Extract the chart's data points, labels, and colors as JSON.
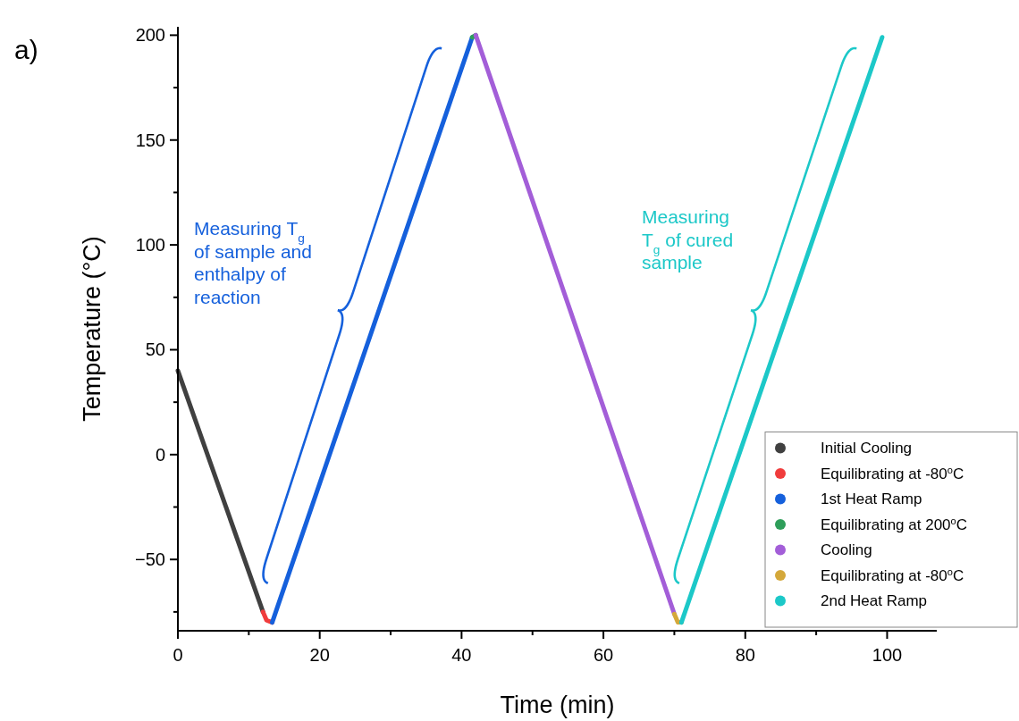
{
  "chart_data": {
    "type": "line",
    "xlabel": "Time (min)",
    "ylabel": "Temperature (°C)",
    "xlim": [
      0,
      107
    ],
    "ylim": [
      -84,
      204
    ],
    "xticks": [
      0,
      {
        "value": 10,
        "label": null
      },
      20,
      {
        "value": 30,
        "label": null
      },
      40,
      {
        "value": 50,
        "label": null
      },
      60,
      {
        "value": 70,
        "label": null
      },
      80,
      {
        "value": 90,
        "label": null
      },
      100
    ],
    "yticks": [
      {
        "value": -75,
        "label": null
      },
      -50,
      {
        "value": -25,
        "label": null
      },
      0,
      {
        "value": 25,
        "label": null
      },
      50,
      {
        "value": 75,
        "label": null
      },
      100,
      {
        "value": 125,
        "label": null
      },
      150,
      {
        "value": 175,
        "label": null
      },
      200
    ],
    "grid": false,
    "legend": "bottom right",
    "marker": "none",
    "line_style": "solid",
    "series": [
      {
        "name": "Initial Cooling",
        "color": "#404040",
        "x": [
          0,
          12
        ],
        "values": [
          40,
          -75
        ]
      },
      {
        "name": "Equilibrating at -80$^{o}$C",
        "color": "#f03c3c",
        "x": [
          12,
          12.5,
          13.3
        ],
        "values": [
          -75,
          -79,
          -80
        ]
      },
      {
        "name": "1st Heat Ramp",
        "color": "#1560dc",
        "x": [
          13.3,
          41.5
        ],
        "values": [
          -80,
          199
        ]
      },
      {
        "name": "Equilibrating at 200$^{o}$C",
        "color": "#2e9e5a",
        "x": [
          41.5,
          42
        ],
        "values": [
          199,
          200
        ]
      },
      {
        "name": "Cooling",
        "color": "#a35ed8",
        "x": [
          42,
          70
        ],
        "values": [
          200,
          -76
        ]
      },
      {
        "name": "Equilibrating at -80$^{o}$C",
        "color": "#d4a83a",
        "x": [
          70,
          70.5,
          71
        ],
        "values": [
          -76,
          -80,
          -80
        ]
      },
      {
        "name": "2nd Heat Ramp",
        "color": "#1cc8c8",
        "x": [
          71,
          99.3
        ],
        "values": [
          -80,
          199
        ]
      }
    ],
    "annotations": [
      "a)",
      "Measuring T$_{g}$ of sample and enthalpy of reaction",
      "Measuring T$_{g}$ of cured sample"
    ]
  }
}
